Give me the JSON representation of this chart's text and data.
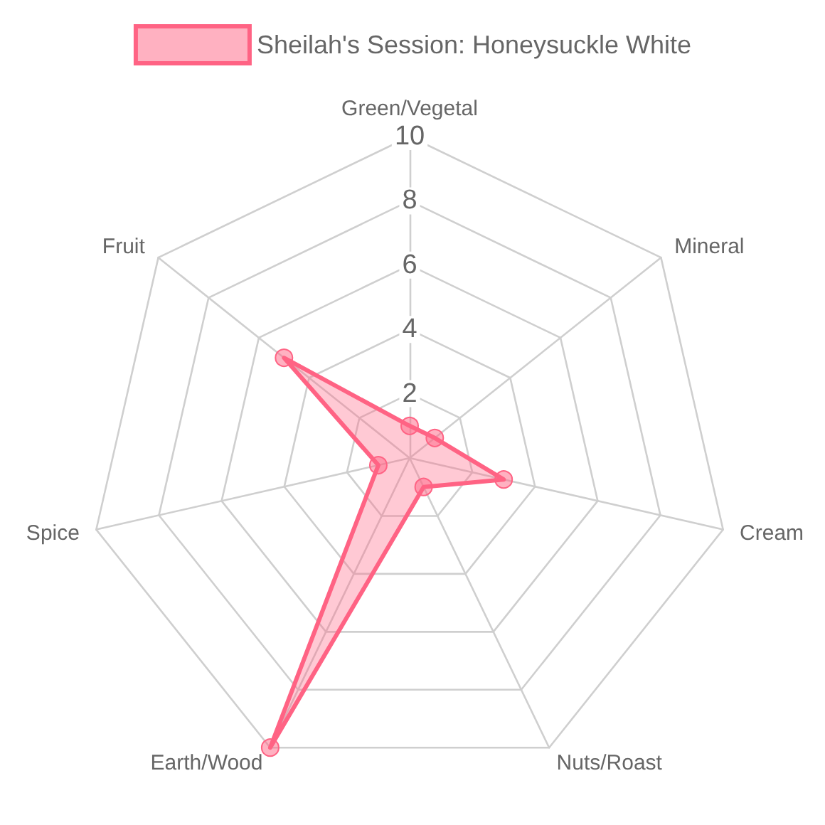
{
  "chart_data": {
    "type": "radar",
    "categories": [
      "Green/Vegetal",
      "Mineral",
      "Cream",
      "Nuts/Roast",
      "Earth/Wood",
      "Spice",
      "Fruit"
    ],
    "series": [
      {
        "name": "Sheilah's Session: Honeysuckle White",
        "color": "#ff6384",
        "values": [
          1,
          1,
          3,
          1,
          10,
          1,
          5
        ]
      }
    ],
    "ylim": [
      0,
      10
    ],
    "yticks": [
      2,
      4,
      6,
      8,
      10
    ],
    "grid": true,
    "legend": "top",
    "marker": "circle"
  }
}
